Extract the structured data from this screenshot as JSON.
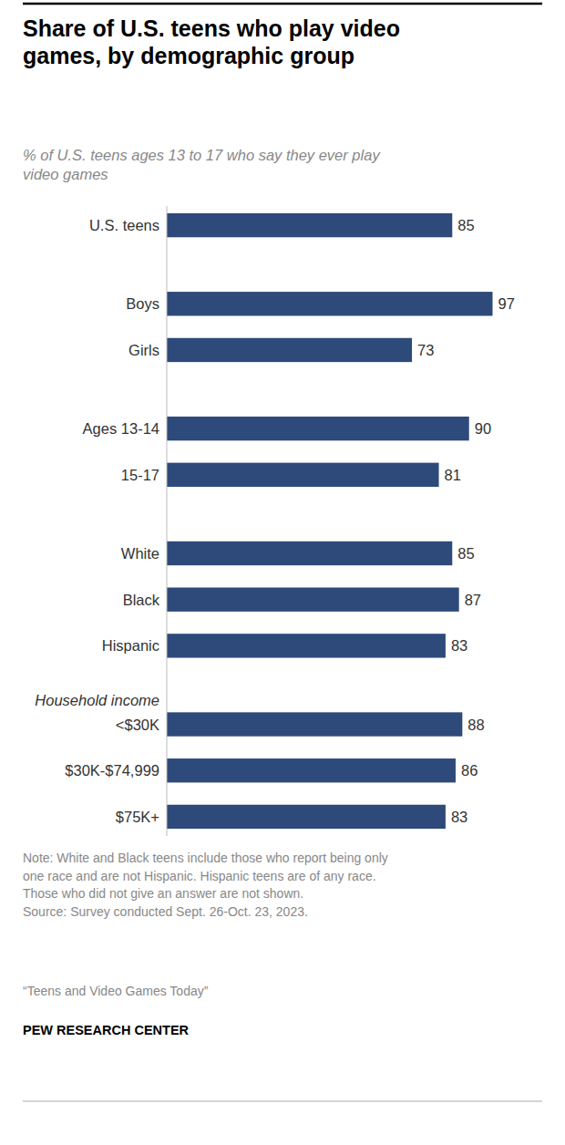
{
  "chart_data": {
    "type": "bar",
    "orientation": "horizontal",
    "title": "Share of U.S. teens who play video\ngames, by demographic group",
    "subtitle": "% of U.S. teens ages 13 to 17 who say they ever play\nvideo games",
    "categories": [
      "U.S. teens",
      "Boys",
      "Girls",
      "Ages 13-14",
      "15-17",
      "White",
      "Black",
      "Hispanic",
      "<$30K",
      "$30K-$74,999",
      "$75K+"
    ],
    "values": [
      85,
      97,
      73,
      90,
      81,
      85,
      87,
      83,
      88,
      86,
      83
    ],
    "color": "#2d4a7a",
    "xlim": [
      0,
      105
    ],
    "data_labels": true,
    "tick_labels": false,
    "grid": false,
    "annotations": [
      "Household income"
    ],
    "note": "Note: White and Black teens include those who report being only\none race and are not Hispanic. Hispanic teens are of any race.\nThose who did not give an answer are not shown.\nSource: Survey conducted Sept. 26-Oct. 23, 2023.",
    "source": "“Teens and Video Games Today”",
    "credit": "PEW RESEARCH CENTER"
  }
}
